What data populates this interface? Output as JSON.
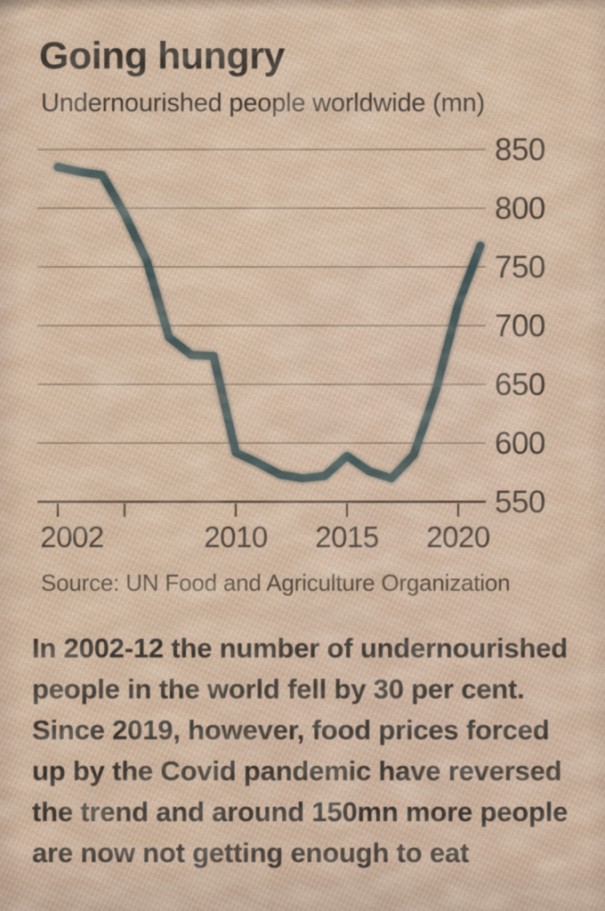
{
  "header": {
    "title": "Going hungry",
    "subtitle": "Undernourished people worldwide (mn)"
  },
  "source_line": "Source: UN Food and Agriculture Organization",
  "body": {
    "lines": [
      "In 2002-12 the number of undernourished",
      "people in the world fell by 30 per cent.",
      "Since 2019, however, food prices forced",
      "up by the Covid pandemic have reversed",
      "the trend and around 150mn more people",
      "are now not getting enough to eat"
    ]
  },
  "colors": {
    "paper": "#d5baa2",
    "ink": "#23201c",
    "line": "#2f4a4e",
    "grid": "#7b6753",
    "axis": "#44392c",
    "label": "#37302a"
  },
  "chart_data": {
    "type": "line",
    "title": "Going hungry",
    "subtitle": "Undernourished people worldwide (mn)",
    "unit": "mn",
    "x": [
      2002,
      2003,
      2004,
      2005,
      2006,
      2007,
      2008,
      2009,
      2010,
      2011,
      2012,
      2013,
      2014,
      2015,
      2016,
      2017,
      2018,
      2019,
      2020,
      2021
    ],
    "values": [
      835,
      831,
      828,
      795,
      755,
      690,
      675,
      674,
      592,
      583,
      573,
      570,
      572,
      589,
      576,
      570,
      590,
      645,
      718,
      768
    ],
    "ylim": [
      550,
      850
    ],
    "yticks": [
      850,
      800,
      750,
      700,
      650,
      600,
      550
    ],
    "xticks": [
      {
        "year": 2002,
        "label": "2002"
      },
      {
        "year": 2005,
        "label": ""
      },
      {
        "year": 2010,
        "label": "2010"
      },
      {
        "year": 2015,
        "label": "2015"
      },
      {
        "year": 2020,
        "label": "2020"
      }
    ],
    "grid": "horizontal-only",
    "legend": "none",
    "line_color": "#2f4a4e",
    "source": "Source: UN Food and Agriculture Organization"
  }
}
